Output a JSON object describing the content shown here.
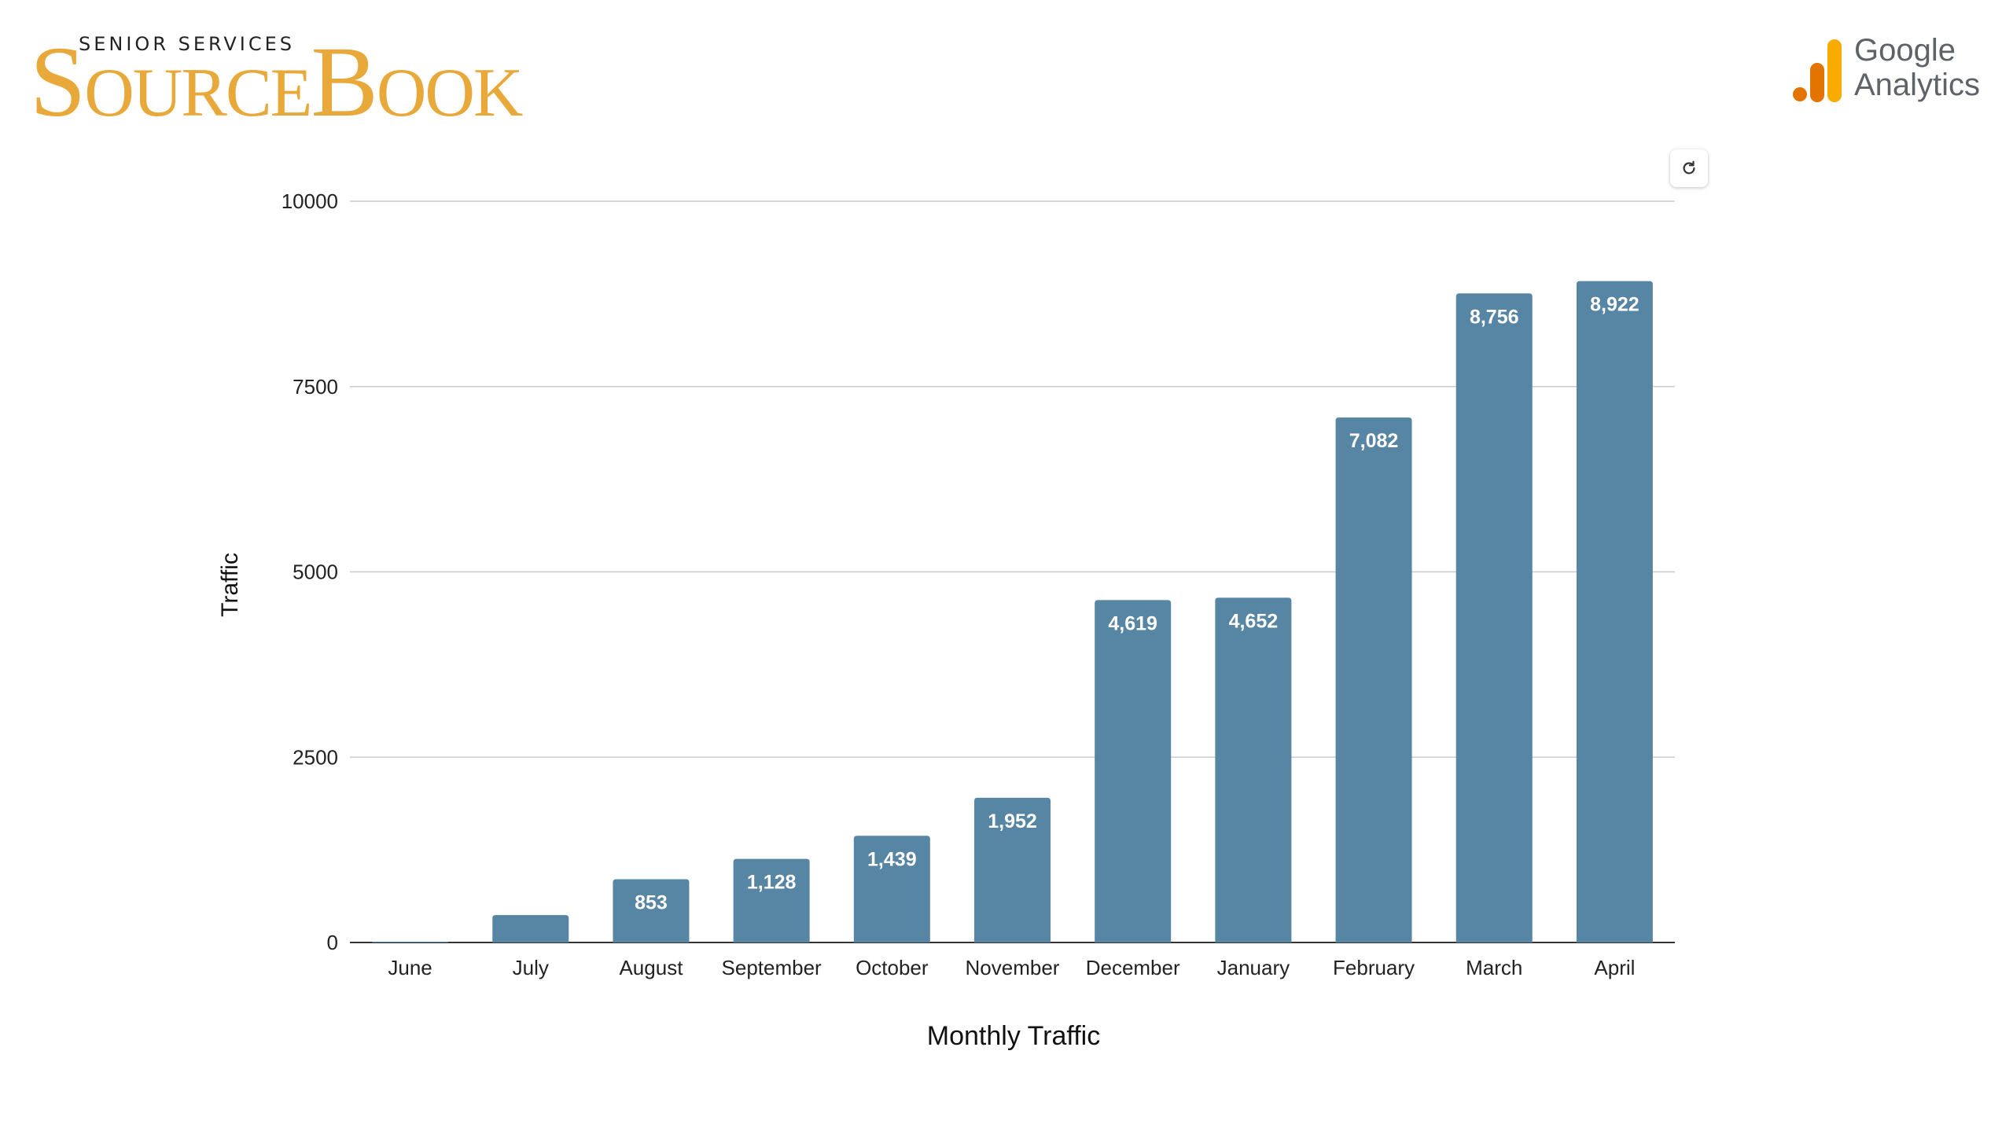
{
  "header": {
    "brand_small": "SENIOR SERVICES",
    "brand_big": "SOURCEBOOK",
    "brand_color": "#e9a93a",
    "partner_line1": "Google",
    "partner_line2": "Analytics",
    "partner_icon": "google-analytics-icon",
    "refresh_icon": "refresh-icon"
  },
  "chart_data": {
    "type": "bar",
    "categories": [
      "June",
      "July",
      "August",
      "September",
      "October",
      "November",
      "December",
      "January",
      "February",
      "March",
      "April"
    ],
    "series": [
      {
        "values": [
          0,
          370,
          853,
          1128,
          1439,
          1952,
          4619,
          4652,
          7082,
          8756,
          8922
        ],
        "data_labels": [
          "",
          "",
          "853",
          "1,128",
          "1,439",
          "1,952",
          "4,619",
          "4,652",
          "7,082",
          "8,756",
          "8,922"
        ],
        "color": "#5785a4"
      }
    ],
    "title": "",
    "xlabel": "Monthly Traffic",
    "ylabel": "Traffic",
    "ylim": [
      0,
      10000
    ],
    "yticks": [
      0,
      2500,
      5000,
      7500,
      10000
    ],
    "ytick_labels": [
      "0",
      "2500",
      "5000",
      "7500",
      "10000"
    ],
    "grid": true,
    "legend": "none"
  }
}
